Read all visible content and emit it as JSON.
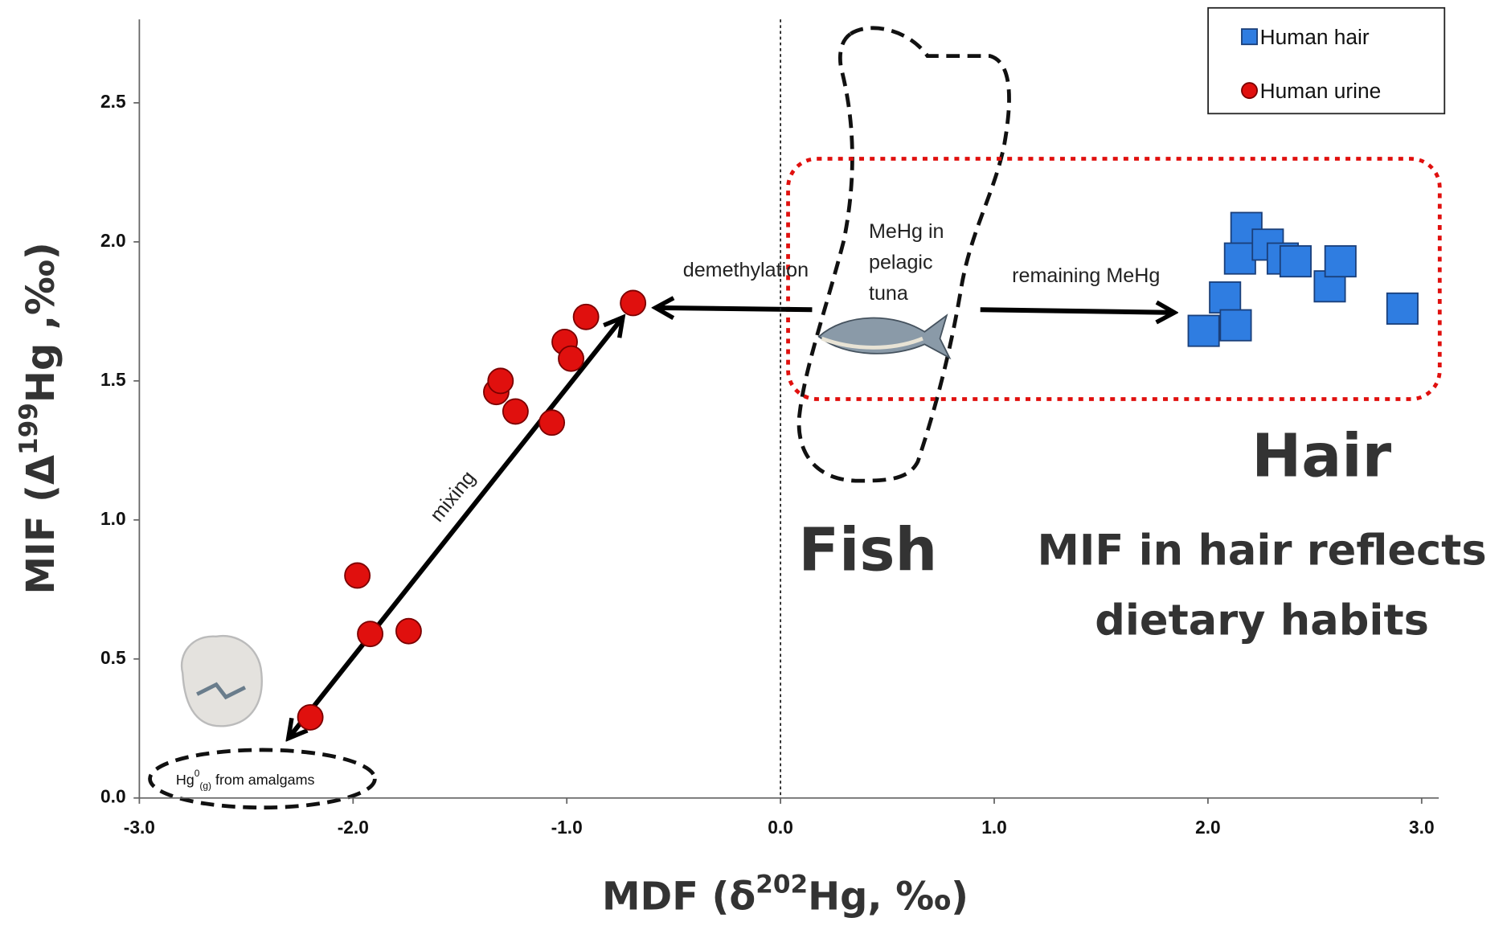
{
  "chart_data": {
    "type": "scatter",
    "x_label": {
      "pre": "MDF (δ",
      "sup": "202",
      "post": "Hg, ‰)"
    },
    "y_label": {
      "pre": "MIF (Δ",
      "sup": "199",
      "post": "Hg ,‰)"
    },
    "xlim": [
      -3.0,
      3.08
    ],
    "ylim": [
      0,
      2.8
    ],
    "xticks": [
      {
        "value": -3,
        "label": "-3.0"
      },
      {
        "value": -2,
        "label": "-2.0"
      },
      {
        "value": -1,
        "label": "-1.0"
      },
      {
        "value": 0,
        "label": "0.0"
      },
      {
        "value": 1,
        "label": "1.0"
      },
      {
        "value": 2,
        "label": "2.0"
      },
      {
        "value": 3,
        "label": "3.0"
      }
    ],
    "yticks": [
      {
        "value": 0,
        "label": "0.0"
      },
      {
        "value": 0.5,
        "label": "0.5"
      },
      {
        "value": 1,
        "label": "1.0"
      },
      {
        "value": 1.5,
        "label": "1.5"
      },
      {
        "value": 2,
        "label": "2.0"
      },
      {
        "value": 2.5,
        "label": "2.5"
      }
    ],
    "legend": "upper right",
    "series": [
      {
        "name": "Human hair",
        "color": "#2f7de1",
        "marker": "square",
        "x": [
          1.98,
          2.08,
          2.13,
          2.18,
          2.15,
          2.28,
          2.35,
          2.41,
          2.57,
          2.62,
          2.91
        ],
        "values": [
          1.68,
          1.8,
          1.7,
          2.05,
          1.94,
          1.99,
          1.94,
          1.93,
          1.84,
          1.93,
          1.76
        ]
      },
      {
        "name": "Human urine",
        "color": "#e0100e",
        "marker": "circle",
        "x": [
          -2.2,
          -1.98,
          -1.92,
          -1.74,
          -1.33,
          -1.31,
          -1.24,
          -1.07,
          -1.01,
          -0.98,
          -0.91,
          -0.69
        ],
        "values": [
          0.29,
          0.8,
          0.59,
          0.6,
          1.46,
          1.5,
          1.39,
          1.35,
          1.64,
          1.58,
          1.73,
          1.78
        ]
      }
    ],
    "annotations": {
      "demethylation": "demethylation",
      "remaining": "remaining MeHg",
      "mixing": "mixing",
      "tuna": [
        "MeHg in",
        "pelagic",
        "tuna"
      ],
      "amalgam": {
        "pre": "Hg",
        "sup": "0",
        "sub": "(g)",
        "post": " from amalgams"
      },
      "fish": "Fish",
      "hair": "Hair",
      "message": [
        "MIF in hair reflects",
        "dietary habits"
      ]
    }
  }
}
